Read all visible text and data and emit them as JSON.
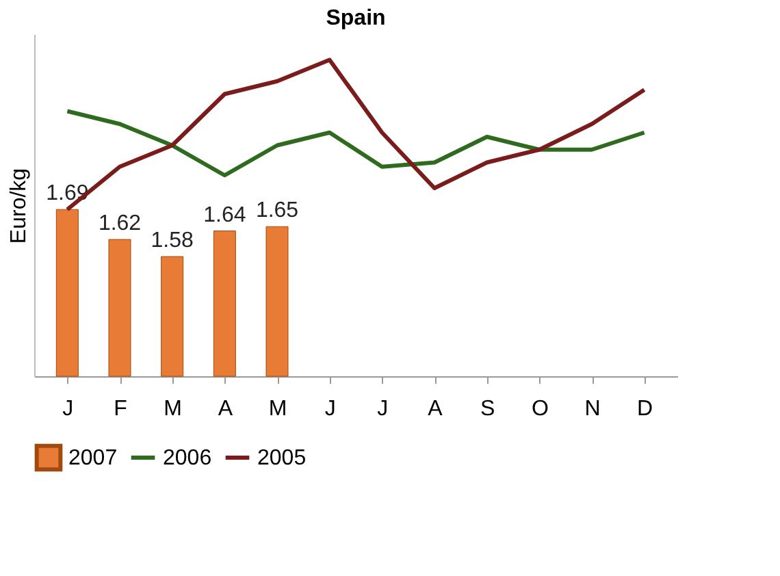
{
  "chart_data": {
    "type": "bar",
    "title": "Spain",
    "ylabel": "Euro/kg",
    "categories": [
      "J",
      "F",
      "M",
      "A",
      "M",
      "J",
      "J",
      "A",
      "S",
      "O",
      "N",
      "D"
    ],
    "series": [
      {
        "name": "2007",
        "color": "#e87b35",
        "values": [
          1.69,
          1.62,
          1.58,
          1.64,
          1.65,
          null,
          null,
          null,
          null,
          null,
          null,
          null
        ],
        "value_labels": [
          "1.69",
          "1.62",
          "1.58",
          "1.64",
          "1.65",
          null,
          null,
          null,
          null,
          null,
          null,
          null
        ]
      },
      {
        "name": "2006",
        "type": "line",
        "color": "#2e6b1e",
        "values": [
          1.92,
          1.89,
          1.84,
          1.77,
          1.84,
          1.87,
          1.79,
          1.8,
          1.86,
          1.83,
          1.83,
          1.87
        ]
      },
      {
        "name": "2005",
        "type": "line",
        "color": "#7a1c1c",
        "values": [
          1.69,
          1.79,
          1.84,
          1.96,
          1.99,
          2.04,
          1.87,
          1.74,
          1.8,
          1.83,
          1.89,
          1.97
        ]
      }
    ],
    "ylim": [
      1.3,
      2.1
    ],
    "tick_labels": "x",
    "grid": false,
    "legend": "bottom",
    "line_style": "solid",
    "marker": "none"
  }
}
